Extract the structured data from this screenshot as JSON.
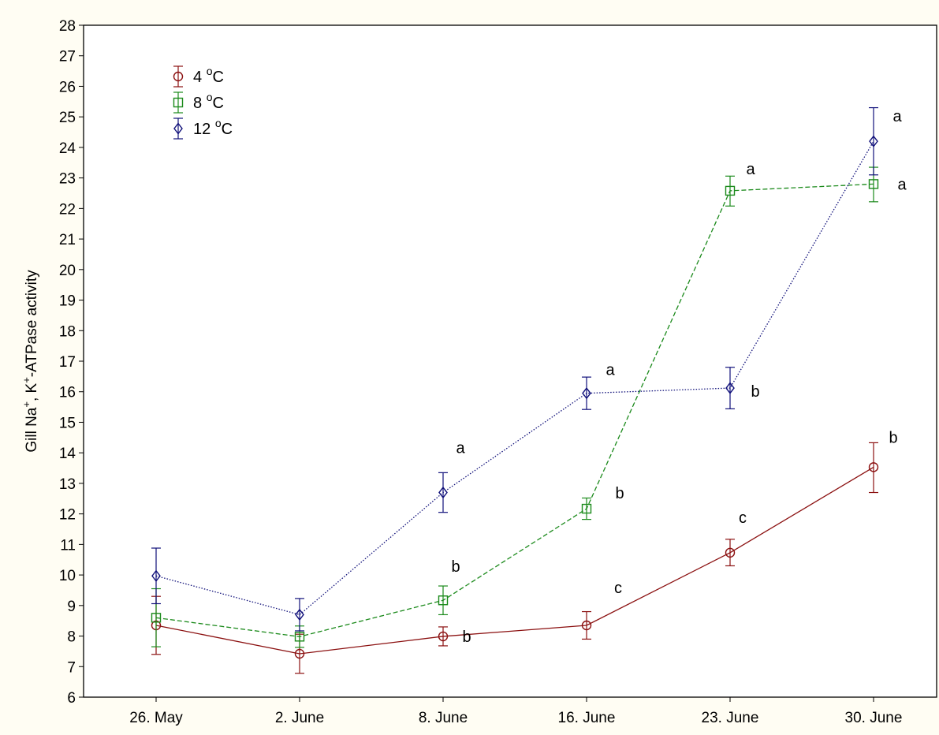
{
  "chart_data": {
    "type": "line",
    "categories": [
      "26. May",
      "2. June",
      "8. June",
      "16. June",
      "23. June",
      "30. June"
    ],
    "ylabel_parts": [
      "Gill Na",
      "+",
      ", K",
      "+",
      "-ATPase activity"
    ],
    "ylim": [
      6,
      28
    ],
    "ytick_step": 1,
    "grid": false,
    "legend_position": "top-left",
    "series": [
      {
        "name_parts": [
          "4 ",
          "o",
          "C"
        ],
        "color": "#8b1010",
        "marker": "circle",
        "line": "solid",
        "values": [
          8.35,
          7.42,
          7.99,
          8.35,
          10.73,
          13.53
        ],
        "err_low": [
          7.4,
          6.78,
          7.68,
          7.9,
          10.3,
          12.7
        ],
        "err_high": [
          9.3,
          8.06,
          8.3,
          8.8,
          11.17,
          14.33
        ],
        "letters": [
          "",
          "",
          "b",
          "c",
          "c",
          "b"
        ]
      },
      {
        "name_parts": [
          "8 ",
          "o",
          "C"
        ],
        "color": "#1b8a1b",
        "marker": "square",
        "line": "dashed",
        "values": [
          8.6,
          7.98,
          9.17,
          12.17,
          22.58,
          22.8
        ],
        "err_low": [
          7.65,
          7.63,
          8.7,
          11.82,
          22.08,
          22.22
        ],
        "err_high": [
          9.55,
          8.33,
          9.64,
          12.52,
          23.06,
          23.35
        ],
        "letters": [
          "",
          "",
          "b",
          "b",
          "a",
          "a"
        ]
      },
      {
        "name_parts": [
          "12 ",
          "o",
          "C"
        ],
        "color": "#10107a",
        "marker": "diamond",
        "line": "dotted",
        "values": [
          9.97,
          8.7,
          12.7,
          15.95,
          16.12,
          24.2
        ],
        "err_low": [
          9.06,
          8.17,
          12.05,
          15.42,
          15.44,
          23.1
        ],
        "err_high": [
          10.88,
          9.23,
          13.35,
          16.48,
          16.8,
          25.3
        ],
        "letters": [
          "",
          "",
          "a",
          "a",
          "b",
          "a"
        ]
      }
    ]
  }
}
